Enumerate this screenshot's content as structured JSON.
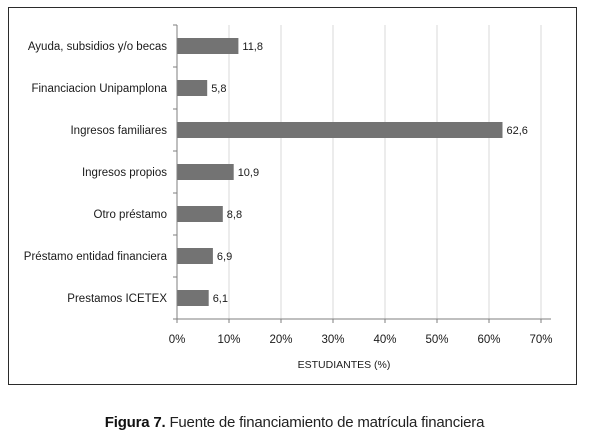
{
  "chart_data": {
    "type": "bar",
    "orientation": "horizontal",
    "categories": [
      "Ayuda, subsidios y/o becas",
      "Financiacion Unipamplona",
      "Ingresos familiares",
      "Ingresos propios",
      "Otro préstamo",
      "Préstamo entidad financiera",
      "Prestamos ICETEX"
    ],
    "values": [
      11.8,
      5.8,
      62.6,
      10.9,
      8.8,
      6.9,
      6.1
    ],
    "value_labels": [
      "11,8",
      "5,8",
      "62,6",
      "10,9",
      "8,8",
      "6,9",
      "6,1"
    ],
    "xlabel": "ESTUDIANTES (%)",
    "xlim": [
      0,
      70
    ],
    "xticks": [
      0,
      10,
      20,
      30,
      40,
      50,
      60,
      70
    ],
    "xtick_labels": [
      "0%",
      "10%",
      "20%",
      "30%",
      "40%",
      "50%",
      "60%",
      "70%"
    ],
    "grid": "vertical",
    "bar_color": "#737373",
    "grid_color": "#d9d9d9",
    "axis_color": "#7f7f7f"
  },
  "caption": {
    "label": "Figura 7.",
    "text": "Fuente de financiamiento de matrícula financiera"
  }
}
